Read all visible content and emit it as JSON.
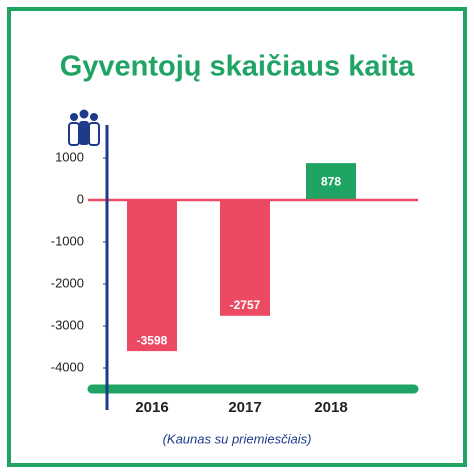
{
  "chart_data": {
    "type": "bar",
    "title": "Gyventojų skaičiaus kaita",
    "subtitle": "(Kaunas su priemiesčiais)",
    "categories": [
      "2016",
      "2017",
      "2018"
    ],
    "values": [
      -3598,
      -2757,
      878
    ],
    "colors": [
      "#ec4a63",
      "#ec4a63",
      "#1fa463"
    ],
    "ylim": [
      -4500,
      1800
    ],
    "yticks": [
      1000,
      0,
      -1000,
      -2000,
      -3000,
      -4000
    ]
  }
}
